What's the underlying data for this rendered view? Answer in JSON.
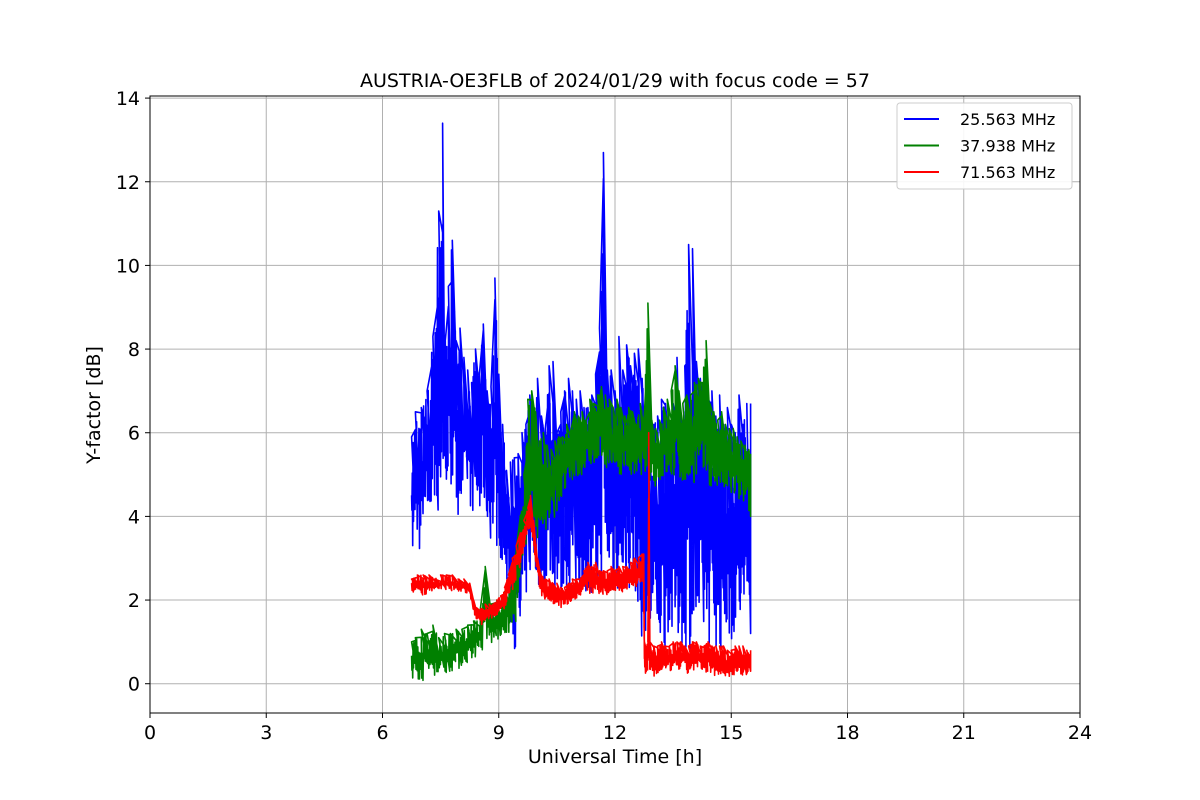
{
  "chart_data": {
    "type": "line",
    "title": "AUSTRIA-OE3FLB of 2024/01/29 with focus code = 57",
    "xlabel": "Universal Time [h]",
    "ylabel": "Y-factor [dB]",
    "xlim": [
      0,
      24
    ],
    "ylim": [
      -0.7,
      14.05
    ],
    "xticks": [
      0,
      3,
      6,
      9,
      12,
      15,
      18,
      21,
      24
    ],
    "yticks": [
      0,
      2,
      4,
      6,
      8,
      10,
      12,
      14
    ],
    "grid": true,
    "legend_position": "top-right",
    "series": [
      {
        "name": "25.563 MHz",
        "color": "#0000ff",
        "x": [
          6.75,
          6.85,
          7.0,
          7.15,
          7.3,
          7.45,
          7.55,
          7.6,
          7.7,
          7.8,
          7.9,
          8.0,
          8.1,
          8.2,
          8.3,
          8.4,
          8.5,
          8.6,
          8.7,
          8.8,
          8.9,
          9.0,
          9.1,
          9.2,
          9.3,
          9.4,
          9.5,
          9.6,
          9.7,
          9.8,
          9.9,
          10.0,
          10.1,
          10.2,
          10.3,
          10.4,
          10.5,
          10.6,
          10.7,
          10.8,
          10.9,
          11.0,
          11.1,
          11.2,
          11.3,
          11.4,
          11.5,
          11.6,
          11.7,
          11.8,
          11.9,
          12.0,
          12.1,
          12.2,
          12.3,
          12.4,
          12.5,
          12.6,
          12.7,
          12.8,
          12.9,
          13.0,
          13.1,
          13.2,
          13.3,
          13.4,
          13.5,
          13.6,
          13.7,
          13.8,
          13.9,
          14.0,
          14.1,
          14.2,
          14.3,
          14.4,
          14.5,
          14.6,
          14.7,
          14.8,
          14.9,
          15.0,
          15.1,
          15.2,
          15.3,
          15.4,
          15.5
        ],
        "y_high": [
          5.9,
          6.5,
          6.6,
          7.0,
          8.3,
          11.3,
          13.4,
          8.0,
          9.5,
          10.6,
          8.2,
          8.5,
          7.8,
          7.5,
          7.2,
          8.0,
          7.4,
          8.6,
          7.0,
          7.1,
          9.7,
          7.4,
          6.2,
          5.1,
          5.3,
          5.4,
          5.5,
          6.0,
          6.2,
          6.9,
          6.1,
          7.3,
          6.4,
          6.1,
          7.6,
          7.7,
          6.0,
          6.5,
          7.0,
          7.3,
          7.0,
          6.8,
          7.0,
          6.6,
          6.6,
          6.9,
          7.4,
          8.5,
          12.7,
          7.5,
          7.5,
          7.0,
          8.3,
          7.5,
          8.1,
          7.6,
          7.9,
          8.0,
          7.3,
          6.4,
          6.0,
          6.2,
          6.4,
          6.8,
          6.7,
          6.3,
          6.7,
          7.8,
          6.4,
          7.6,
          10.5,
          10.4,
          7.7,
          7.3,
          7.4,
          6.8,
          7.0,
          6.4,
          6.9,
          6.2,
          6.6,
          6.2,
          6.0,
          6.9,
          6.2,
          6.7,
          6.7
        ],
        "y_low": [
          2.8,
          3.5,
          3.0,
          3.9,
          3.8,
          4.0,
          4.7,
          4.5,
          4.3,
          4.7,
          3.9,
          4.2,
          3.9,
          4.7,
          4.0,
          4.3,
          3.6,
          4.4,
          3.8,
          3.4,
          3.2,
          3.3,
          2.7,
          2.3,
          1.4,
          0.9,
          0.2,
          1.2,
          2.0,
          2.5,
          2.8,
          2.0,
          2.4,
          2.2,
          2.7,
          2.0,
          2.4,
          1.8,
          2.5,
          2.0,
          2.6,
          2.1,
          2.3,
          2.4,
          2.0,
          1.4,
          2.0,
          2.3,
          2.4,
          2.7,
          2.2,
          2.5,
          2.0,
          2.5,
          2.0,
          2.3,
          2.3,
          1.8,
          1.0,
          0.6,
          0.9,
          0.9,
          1.0,
          0.8,
          0.8,
          1.4,
          0.8,
          0.9,
          1.0,
          0.8,
          0.8,
          0.7,
          1.0,
          0.6,
          1.0,
          1.0,
          0.8,
          0.9,
          0.6,
          1.0,
          1.0,
          0.9,
          1.3,
          0.9,
          1.5,
          1.1,
          1.2
        ]
      },
      {
        "name": "37.938 MHz",
        "color": "#008000",
        "x": [
          6.75,
          6.85,
          7.0,
          7.15,
          7.3,
          7.45,
          7.6,
          7.75,
          7.9,
          8.05,
          8.2,
          8.35,
          8.5,
          8.65,
          8.8,
          8.95,
          9.05,
          9.15,
          9.25,
          9.35,
          9.45,
          9.55,
          9.65,
          9.75,
          9.85,
          9.95,
          10.05,
          10.15,
          10.25,
          10.35,
          10.45,
          10.55,
          10.65,
          10.75,
          10.85,
          10.95,
          11.05,
          11.15,
          11.25,
          11.35,
          11.45,
          11.55,
          11.65,
          11.75,
          11.85,
          11.95,
          12.05,
          12.15,
          12.25,
          12.35,
          12.45,
          12.55,
          12.65,
          12.75,
          12.85,
          12.95,
          13.05,
          13.15,
          13.25,
          13.35,
          13.45,
          13.55,
          13.65,
          13.75,
          13.85,
          13.95,
          14.05,
          14.15,
          14.25,
          14.35,
          14.45,
          14.55,
          14.65,
          14.75,
          14.85,
          14.95,
          15.05,
          15.15,
          15.25,
          15.35,
          15.45,
          15.5
        ],
        "y_high": [
          1.0,
          1.1,
          1.3,
          1.2,
          1.4,
          1.1,
          1.2,
          1.2,
          1.3,
          1.3,
          1.4,
          1.5,
          1.6,
          2.8,
          1.9,
          2.0,
          1.9,
          2.2,
          2.4,
          2.5,
          3.2,
          4.0,
          5.0,
          6.8,
          7.0,
          6.5,
          5.8,
          6.0,
          5.7,
          5.6,
          5.8,
          5.9,
          5.9,
          6.2,
          6.0,
          6.5,
          6.4,
          6.5,
          6.3,
          6.8,
          6.7,
          6.9,
          7.1,
          6.9,
          6.8,
          6.6,
          6.8,
          6.6,
          6.4,
          6.6,
          6.5,
          6.2,
          6.7,
          6.3,
          9.1,
          6.3,
          6.1,
          6.3,
          6.6,
          6.8,
          7.0,
          7.6,
          7.0,
          6.7,
          6.9,
          6.9,
          7.2,
          7.3,
          7.2,
          8.2,
          6.7,
          6.5,
          6.3,
          6.5,
          6.2,
          6.1,
          6.1,
          5.9,
          5.8,
          5.7,
          5.6,
          5.5
        ],
        "y_low": [
          0.1,
          0.2,
          0.0,
          0.2,
          0.2,
          0.2,
          0.2,
          0.3,
          0.3,
          0.4,
          0.5,
          0.6,
          0.7,
          0.8,
          0.9,
          1.0,
          1.1,
          1.1,
          1.2,
          1.3,
          1.5,
          2.0,
          2.8,
          3.8,
          3.9,
          3.6,
          3.3,
          3.5,
          3.6,
          3.8,
          4.0,
          4.2,
          4.4,
          4.6,
          4.7,
          4.8,
          4.9,
          5.0,
          5.1,
          5.2,
          5.2,
          5.2,
          5.3,
          5.2,
          5.1,
          5.0,
          5.0,
          5.0,
          5.1,
          5.0,
          4.9,
          4.8,
          5.0,
          5.0,
          4.9,
          4.8,
          4.7,
          4.8,
          4.9,
          4.9,
          4.8,
          4.9,
          4.8,
          4.8,
          4.7,
          4.8,
          4.8,
          4.9,
          4.8,
          4.8,
          4.7,
          4.7,
          4.6,
          4.7,
          4.5,
          4.5,
          4.4,
          4.4,
          4.3,
          4.2,
          4.1,
          4.0
        ]
      },
      {
        "name": "71.563 MHz",
        "color": "#ff0000",
        "x": [
          6.75,
          6.9,
          7.05,
          7.2,
          7.35,
          7.5,
          7.65,
          7.8,
          7.95,
          8.1,
          8.25,
          8.35,
          8.45,
          8.55,
          8.65,
          8.75,
          8.85,
          8.95,
          9.05,
          9.15,
          9.25,
          9.35,
          9.45,
          9.55,
          9.65,
          9.75,
          9.82,
          9.9,
          10.0,
          10.1,
          10.2,
          10.3,
          10.4,
          10.5,
          10.6,
          10.7,
          10.8,
          10.9,
          11.0,
          11.1,
          11.2,
          11.3,
          11.4,
          11.5,
          11.6,
          11.7,
          11.8,
          11.9,
          12.0,
          12.1,
          12.2,
          12.3,
          12.4,
          12.5,
          12.6,
          12.7,
          12.74,
          12.76,
          12.85,
          12.87,
          12.9,
          13.0,
          13.1,
          13.2,
          13.3,
          13.4,
          13.5,
          13.6,
          13.7,
          13.8,
          13.9,
          14.0,
          14.1,
          14.2,
          14.3,
          14.4,
          14.5,
          14.6,
          14.7,
          14.8,
          14.9,
          15.0,
          15.1,
          15.2,
          15.3,
          15.4,
          15.5
        ],
        "y_high": [
          2.5,
          2.6,
          2.6,
          2.6,
          2.5,
          2.6,
          2.6,
          2.6,
          2.5,
          2.5,
          2.4,
          2.0,
          1.8,
          1.8,
          1.9,
          1.9,
          1.9,
          2.0,
          2.1,
          2.3,
          2.6,
          3.0,
          3.3,
          3.6,
          3.9,
          4.2,
          4.5,
          3.9,
          3.0,
          2.6,
          2.5,
          2.5,
          2.4,
          2.4,
          2.3,
          2.3,
          2.4,
          2.5,
          2.5,
          2.5,
          2.7,
          2.9,
          2.8,
          2.9,
          2.7,
          2.7,
          2.7,
          2.8,
          2.7,
          2.8,
          2.8,
          2.8,
          2.9,
          3.0,
          3.0,
          3.1,
          3.1,
          1.0,
          1.0,
          6.0,
          1.0,
          0.9,
          0.9,
          1.0,
          0.9,
          0.9,
          1.0,
          1.0,
          1.0,
          0.9,
          0.9,
          1.0,
          1.0,
          0.9,
          0.9,
          1.0,
          0.9,
          0.9,
          0.9,
          0.9,
          0.8,
          0.8,
          0.9,
          0.9,
          0.9,
          0.8,
          0.8
        ],
        "y_low": [
          2.1,
          2.2,
          2.1,
          2.2,
          2.2,
          2.2,
          2.2,
          2.2,
          2.2,
          2.2,
          2.1,
          1.7,
          1.5,
          1.4,
          1.5,
          1.5,
          1.6,
          1.6,
          1.7,
          1.8,
          2.0,
          2.2,
          2.5,
          2.8,
          3.2,
          3.5,
          3.8,
          3.2,
          2.5,
          2.1,
          2.0,
          2.0,
          1.9,
          1.9,
          1.8,
          1.9,
          1.9,
          2.0,
          2.0,
          2.1,
          2.2,
          2.2,
          2.1,
          2.2,
          2.1,
          2.1,
          2.1,
          2.2,
          2.2,
          2.2,
          2.2,
          2.2,
          2.3,
          2.3,
          2.3,
          2.4,
          2.3,
          0.2,
          0.2,
          0.3,
          0.1,
          0.1,
          0.2,
          0.3,
          0.2,
          0.3,
          0.3,
          0.3,
          0.3,
          0.3,
          0.2,
          0.3,
          0.3,
          0.3,
          0.2,
          0.3,
          0.2,
          0.2,
          0.2,
          0.2,
          0.1,
          0.2,
          0.2,
          0.2,
          0.2,
          0.2,
          0.3
        ]
      }
    ]
  }
}
